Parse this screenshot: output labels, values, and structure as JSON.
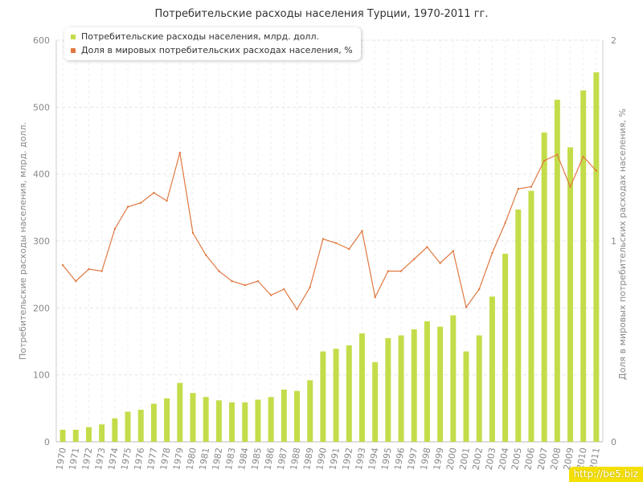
{
  "chart_data": {
    "type": "bar+line",
    "title": "Потребительские расходы населения Турции, 1970-2011 гг.",
    "categories": [
      "1970",
      "1971",
      "1972",
      "1973",
      "1974",
      "1975",
      "1976",
      "1977",
      "1978",
      "1979",
      "1980",
      "1981",
      "1982",
      "1983",
      "1984",
      "1985",
      "1986",
      "1987",
      "1988",
      "1989",
      "1990",
      "1991",
      "1992",
      "1993",
      "1994",
      "1995",
      "1996",
      "1997",
      "1998",
      "1999",
      "2000",
      "2001",
      "2002",
      "2003",
      "2004",
      "2005",
      "2006",
      "2007",
      "2008",
      "2009",
      "2010",
      "2011"
    ],
    "ylabel_left": "Потребительские расходы населения, млрд. долл.",
    "ylabel_right": "Доля в мировых потребительских расходах населения, %",
    "ylim_left": [
      0,
      600
    ],
    "yticks_left": [
      "0",
      "100",
      "200",
      "300",
      "400",
      "500",
      "600"
    ],
    "ylim_right": [
      0,
      2
    ],
    "yticks_right": [
      "0",
      "1",
      "2"
    ],
    "grid": true,
    "legend_position": "top-left",
    "series": [
      {
        "name": "Потребительские расходы населения, млрд. долл.",
        "type": "bar",
        "axis": "left",
        "color": "#c3dd4a",
        "values": [
          18,
          18,
          22,
          26,
          35,
          45,
          48,
          57,
          65,
          88,
          73,
          67,
          62,
          59,
          59,
          63,
          67,
          78,
          76,
          92,
          135,
          139,
          144,
          162,
          119,
          155,
          159,
          168,
          180,
          172,
          189,
          135,
          159,
          217,
          281,
          347,
          375,
          462,
          511,
          440,
          525,
          552
        ]
      },
      {
        "name": "Доля в мировых потребительских расходах населения, %",
        "type": "line",
        "axis": "right",
        "color": "#e07840",
        "values": [
          0.88,
          0.8,
          0.86,
          0.85,
          1.06,
          1.17,
          1.19,
          1.24,
          1.2,
          1.44,
          1.04,
          0.93,
          0.85,
          0.8,
          0.78,
          0.8,
          0.73,
          0.76,
          0.66,
          0.77,
          1.01,
          0.99,
          0.96,
          1.05,
          0.72,
          0.85,
          0.85,
          0.91,
          0.97,
          0.89,
          0.95,
          0.67,
          0.76,
          0.94,
          1.09,
          1.26,
          1.27,
          1.4,
          1.43,
          1.27,
          1.42,
          1.35
        ]
      }
    ]
  },
  "watermark": "http://be5.biz"
}
